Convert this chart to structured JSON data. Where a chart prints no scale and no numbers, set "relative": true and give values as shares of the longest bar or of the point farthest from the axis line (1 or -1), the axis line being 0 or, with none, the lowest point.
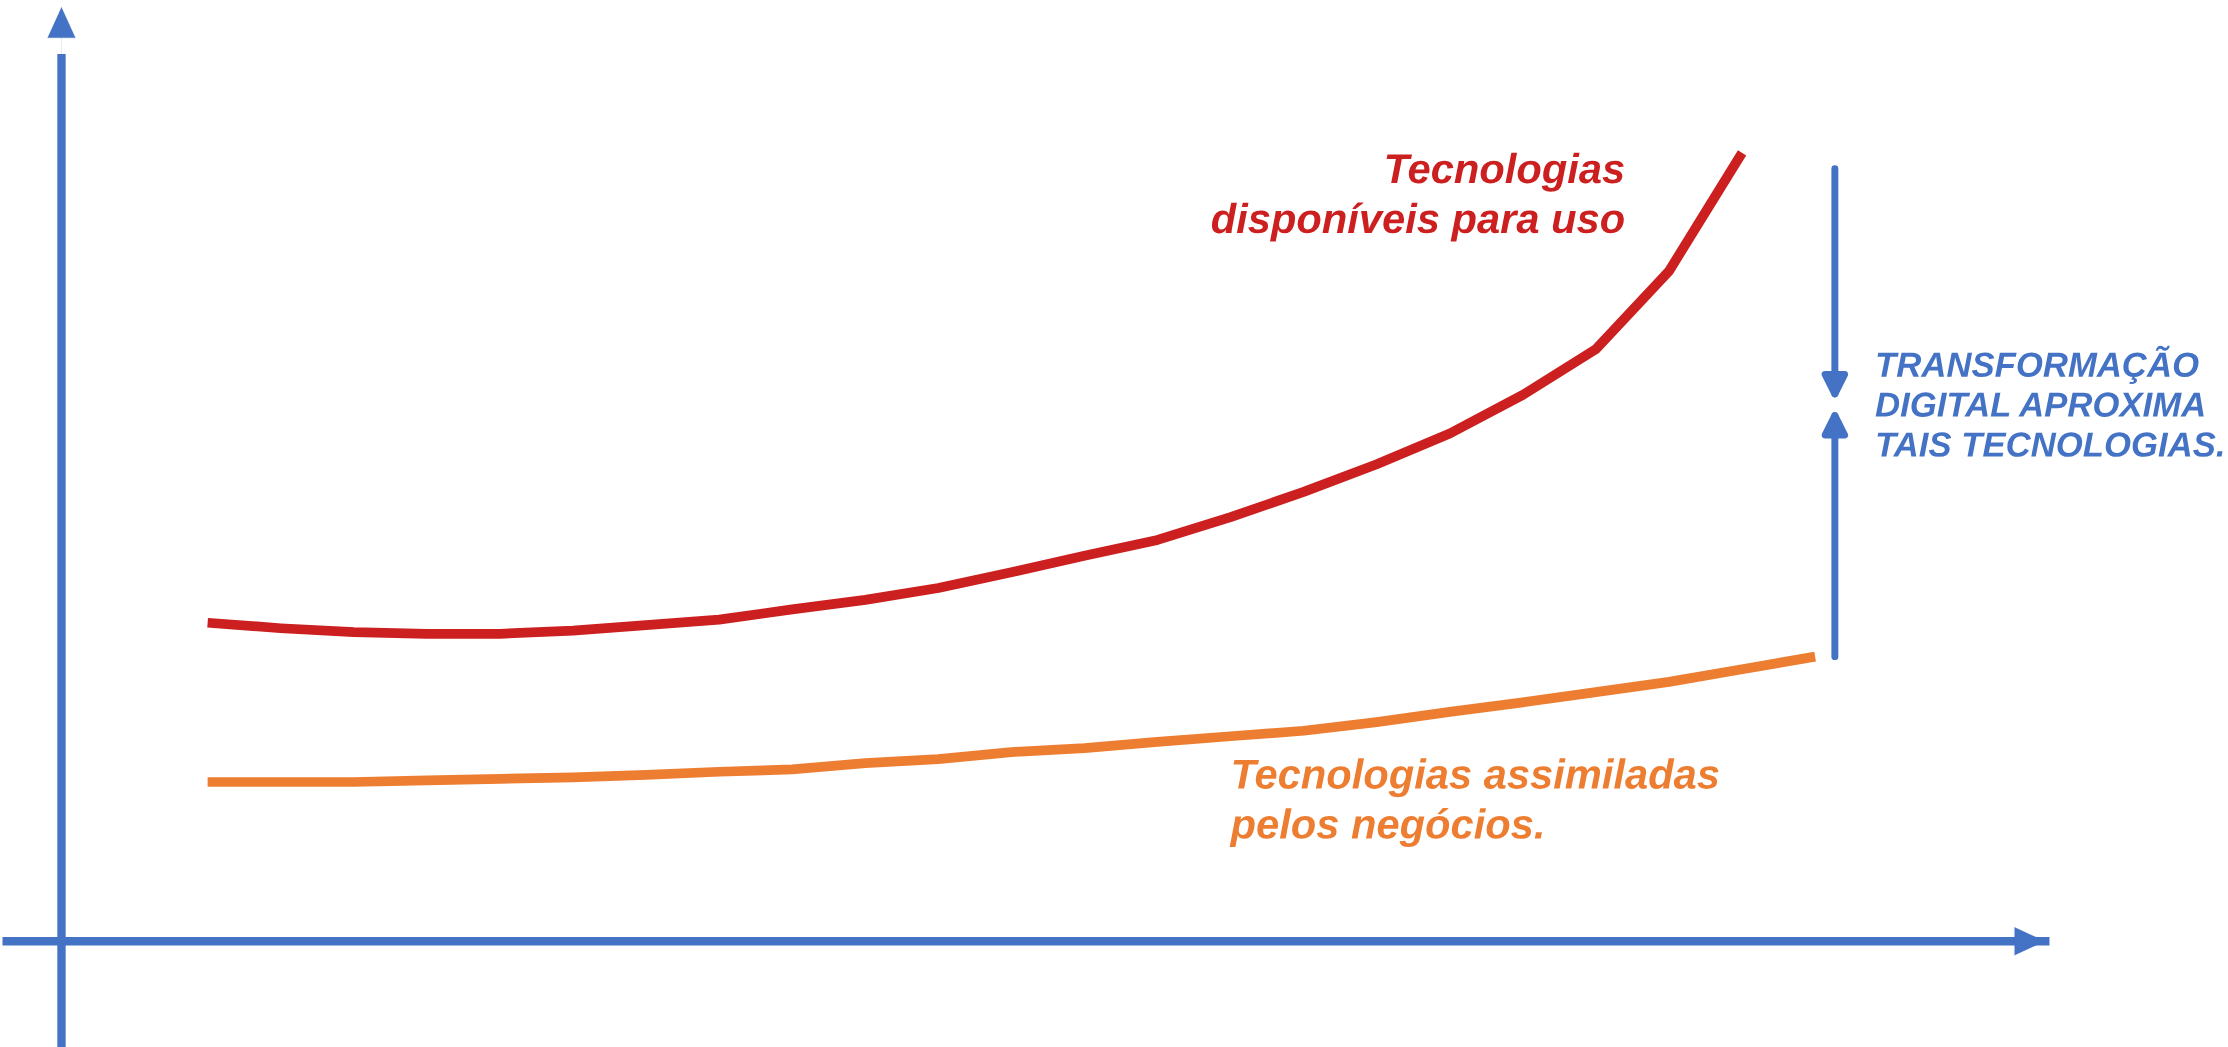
{
  "chart_data": {
    "type": "line",
    "relative": true,
    "legend": false,
    "marker": "none",
    "line_style": "solid",
    "categories": [
      null,
      null,
      null,
      null,
      null,
      null,
      null,
      null,
      null,
      null,
      null,
      null,
      null,
      null,
      null,
      null,
      null,
      null,
      null,
      null,
      null,
      null,
      null
    ],
    "series": [
      {
        "name": "Tecnologias\ndisponíveis para uso",
        "color": "#cc1f1f",
        "values": [
          0.404,
          0.397,
          0.392,
          0.39,
          0.39,
          0.394,
          0.401,
          0.408,
          0.421,
          0.433,
          0.448,
          0.468,
          0.489,
          0.509,
          0.538,
          0.57,
          0.605,
          0.644,
          0.693,
          0.751,
          0.85,
          1.0,
          null
        ]
      },
      {
        "name": "Tecnologias assimiladas\npelos negócios.",
        "color": "#ed7d31",
        "values": [
          0.202,
          0.202,
          0.202,
          0.204,
          0.206,
          0.208,
          0.211,
          0.215,
          0.218,
          0.226,
          0.231,
          0.24,
          0.245,
          0.253,
          0.26,
          0.267,
          0.278,
          0.291,
          0.303,
          0.316,
          0.329,
          0.345,
          0.361
        ]
      }
    ],
    "annotations": [
      "TRANSFORMAÇÃO\nDIGITAL APROXIMA\nTAIS TECNOLOGIAS."
    ]
  }
}
